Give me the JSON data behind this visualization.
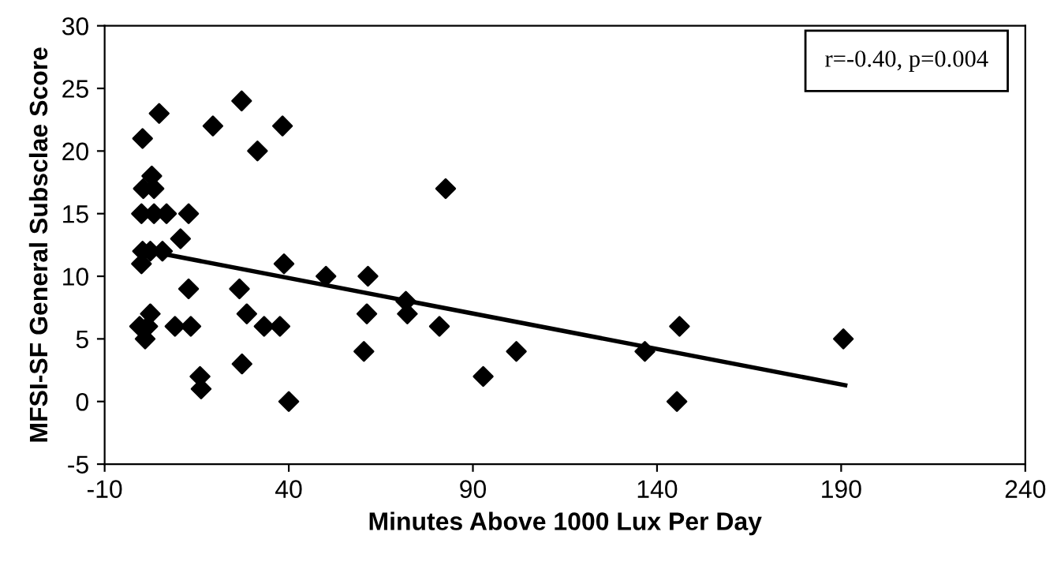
{
  "chart_data": {
    "type": "scatter",
    "xlabel": "Minutes Above 1000 Lux Per Day",
    "ylabel": "MFSI-SF General Subsclae Score",
    "xlim": [
      -10,
      240
    ],
    "xticks": [
      -10,
      40,
      90,
      140,
      190,
      240
    ],
    "ylim": [
      -5,
      30
    ],
    "yticks": [
      -5,
      0,
      5,
      10,
      15,
      20,
      25,
      30
    ],
    "grid": false,
    "legend": false,
    "marker": "diamond",
    "annotations": [
      "r=-0.40, p=0.004"
    ],
    "series": [
      {
        "color": "#000000",
        "x": [
          0.3,
          4.8,
          19.4,
          27.2,
          38.3,
          31.5,
          2.8,
          0.5,
          3.4,
          0.0,
          3.4,
          6.8,
          12.8,
          10.6,
          0.3,
          2.4,
          5.7,
          0.0,
          38.7,
          50.1,
          61.5,
          12.8,
          26.6,
          71.8,
          72.2,
          61.2,
          28.6,
          2.4,
          -0.5,
          1.7,
          9.1,
          13.4,
          33.3,
          37.6,
          80.9,
          1.0,
          60.4,
          27.3,
          15.9,
          16.2,
          40.0,
          82.6,
          92.8,
          101.8,
          136.7,
          146.1,
          145.4,
          190.6
        ],
        "values": [
          21,
          23,
          22,
          24,
          22,
          20,
          18,
          17,
          17,
          15,
          15,
          15,
          15,
          13,
          12,
          12,
          12,
          11,
          11,
          10,
          10,
          9,
          9,
          8,
          7,
          7,
          7,
          7,
          6,
          6,
          6,
          6,
          6,
          6,
          6,
          5,
          4,
          3,
          2,
          1,
          0,
          17,
          2,
          4,
          4,
          6,
          0,
          5
        ]
      },
      {
        "type": "line",
        "color": "#000000",
        "marker": "none",
        "line_style": "solid",
        "x": [
          5.7,
          191.1
        ],
        "values": [
          11.8,
          1.3
        ]
      }
    ]
  }
}
